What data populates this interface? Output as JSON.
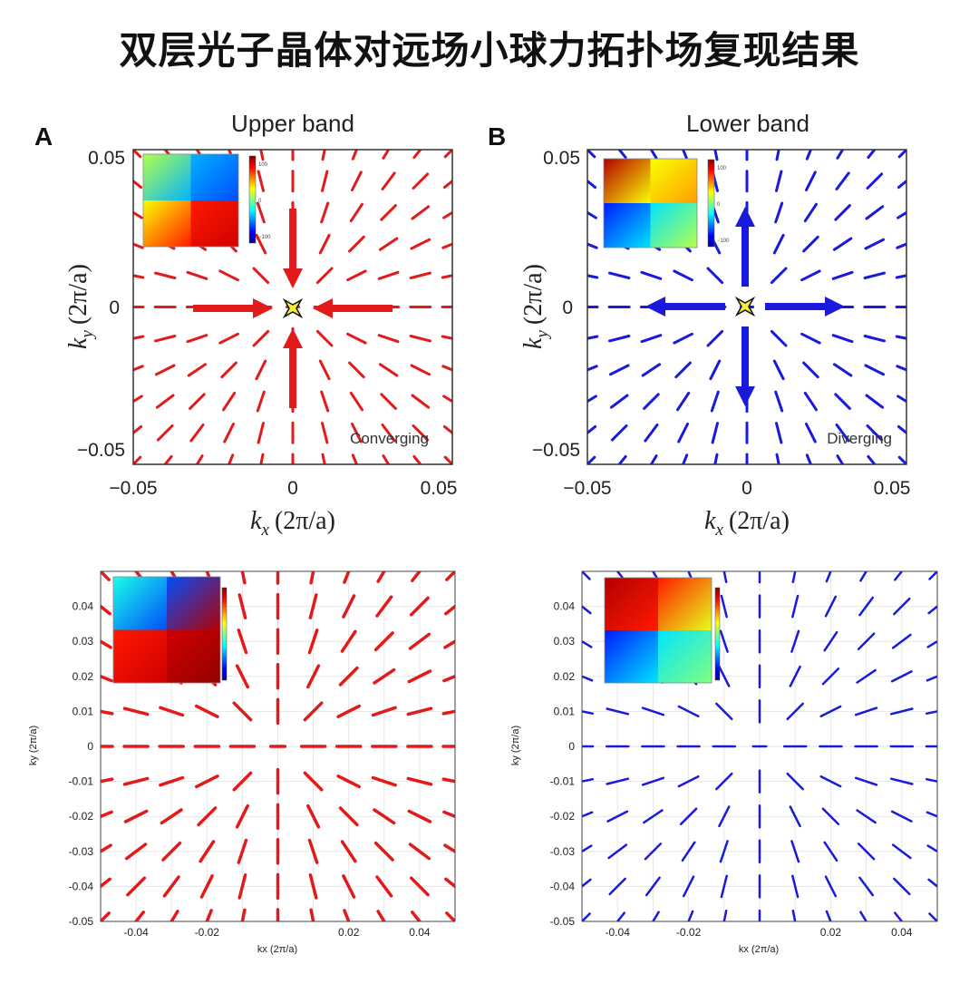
{
  "page_title": "双层光子晶体对远场小球力拓扑场复现结果",
  "colors": {
    "upper_band": "#e31a1a",
    "lower_band": "#1a1adc",
    "grid": "#e6e6e6",
    "marker_fill": "#f2ef3a"
  },
  "chart_data": [
    {
      "type": "vector-field",
      "panel_letter": "A",
      "title": "Upper band",
      "xlabel_main": "k",
      "xlabel_sub": "x",
      "xlabel_unit": "(2π/a)",
      "ylabel_main": "k",
      "ylabel_sub": "y",
      "ylabel_unit": "(2π/a)",
      "xlim": [
        -0.05,
        0.05
      ],
      "ylim": [
        -0.05,
        0.05
      ],
      "xticks": [
        "−0.05",
        "0",
        "0.05"
      ],
      "yticks": [
        "0.05",
        "0",
        "−0.05"
      ],
      "field": "radial",
      "arrows": "converging",
      "annotation": "Converging",
      "inset": {
        "type": "phase-map",
        "colorbar_ticks": [
          "100",
          "0",
          "−100"
        ]
      }
    },
    {
      "type": "vector-field",
      "panel_letter": "B",
      "title": "Lower band",
      "xlabel_main": "k",
      "xlabel_sub": "x",
      "xlabel_unit": "(2π/a)",
      "ylabel_main": "k",
      "ylabel_sub": "y",
      "ylabel_unit": "(2π/a)",
      "xlim": [
        -0.05,
        0.05
      ],
      "ylim": [
        -0.05,
        0.05
      ],
      "xticks": [
        "−0.05",
        "0",
        "0.05"
      ],
      "yticks": [
        "0.05",
        "0",
        "−0.05"
      ],
      "field": "radial",
      "arrows": "diverging",
      "annotation": "Diverging",
      "inset": {
        "type": "phase-map",
        "colorbar_ticks": [
          "100",
          "0",
          "−100"
        ]
      }
    },
    {
      "type": "vector-field",
      "xlabel": "kx (2π/a)",
      "ylabel": "ky (2π/a)",
      "xlim": [
        -0.05,
        0.05
      ],
      "ylim": [
        -0.05,
        0.05
      ],
      "xticks": [
        "-0.04",
        "-0.02",
        "0.02",
        "0.04"
      ],
      "yticks": [
        "0.04",
        "0.03",
        "0.02",
        "0.01",
        "0",
        "-0.01",
        "-0.02",
        "-0.03",
        "-0.04",
        "-0.05"
      ],
      "field": "radial",
      "grid": true,
      "inset": {
        "type": "phase-map"
      }
    },
    {
      "type": "vector-field",
      "xlabel": "kx (2π/a)",
      "ylabel": "ky (2π/a)",
      "xlim": [
        -0.05,
        0.05
      ],
      "ylim": [
        -0.05,
        0.05
      ],
      "xticks": [
        "-0.04",
        "-0.02",
        "0.02",
        "0.04"
      ],
      "yticks": [
        "0.04",
        "0.03",
        "0.02",
        "0.01",
        "0",
        "-0.01",
        "-0.02",
        "-0.03",
        "-0.04",
        "-0.05"
      ],
      "field": "radial",
      "grid": true,
      "inset": {
        "type": "phase-map"
      }
    }
  ]
}
